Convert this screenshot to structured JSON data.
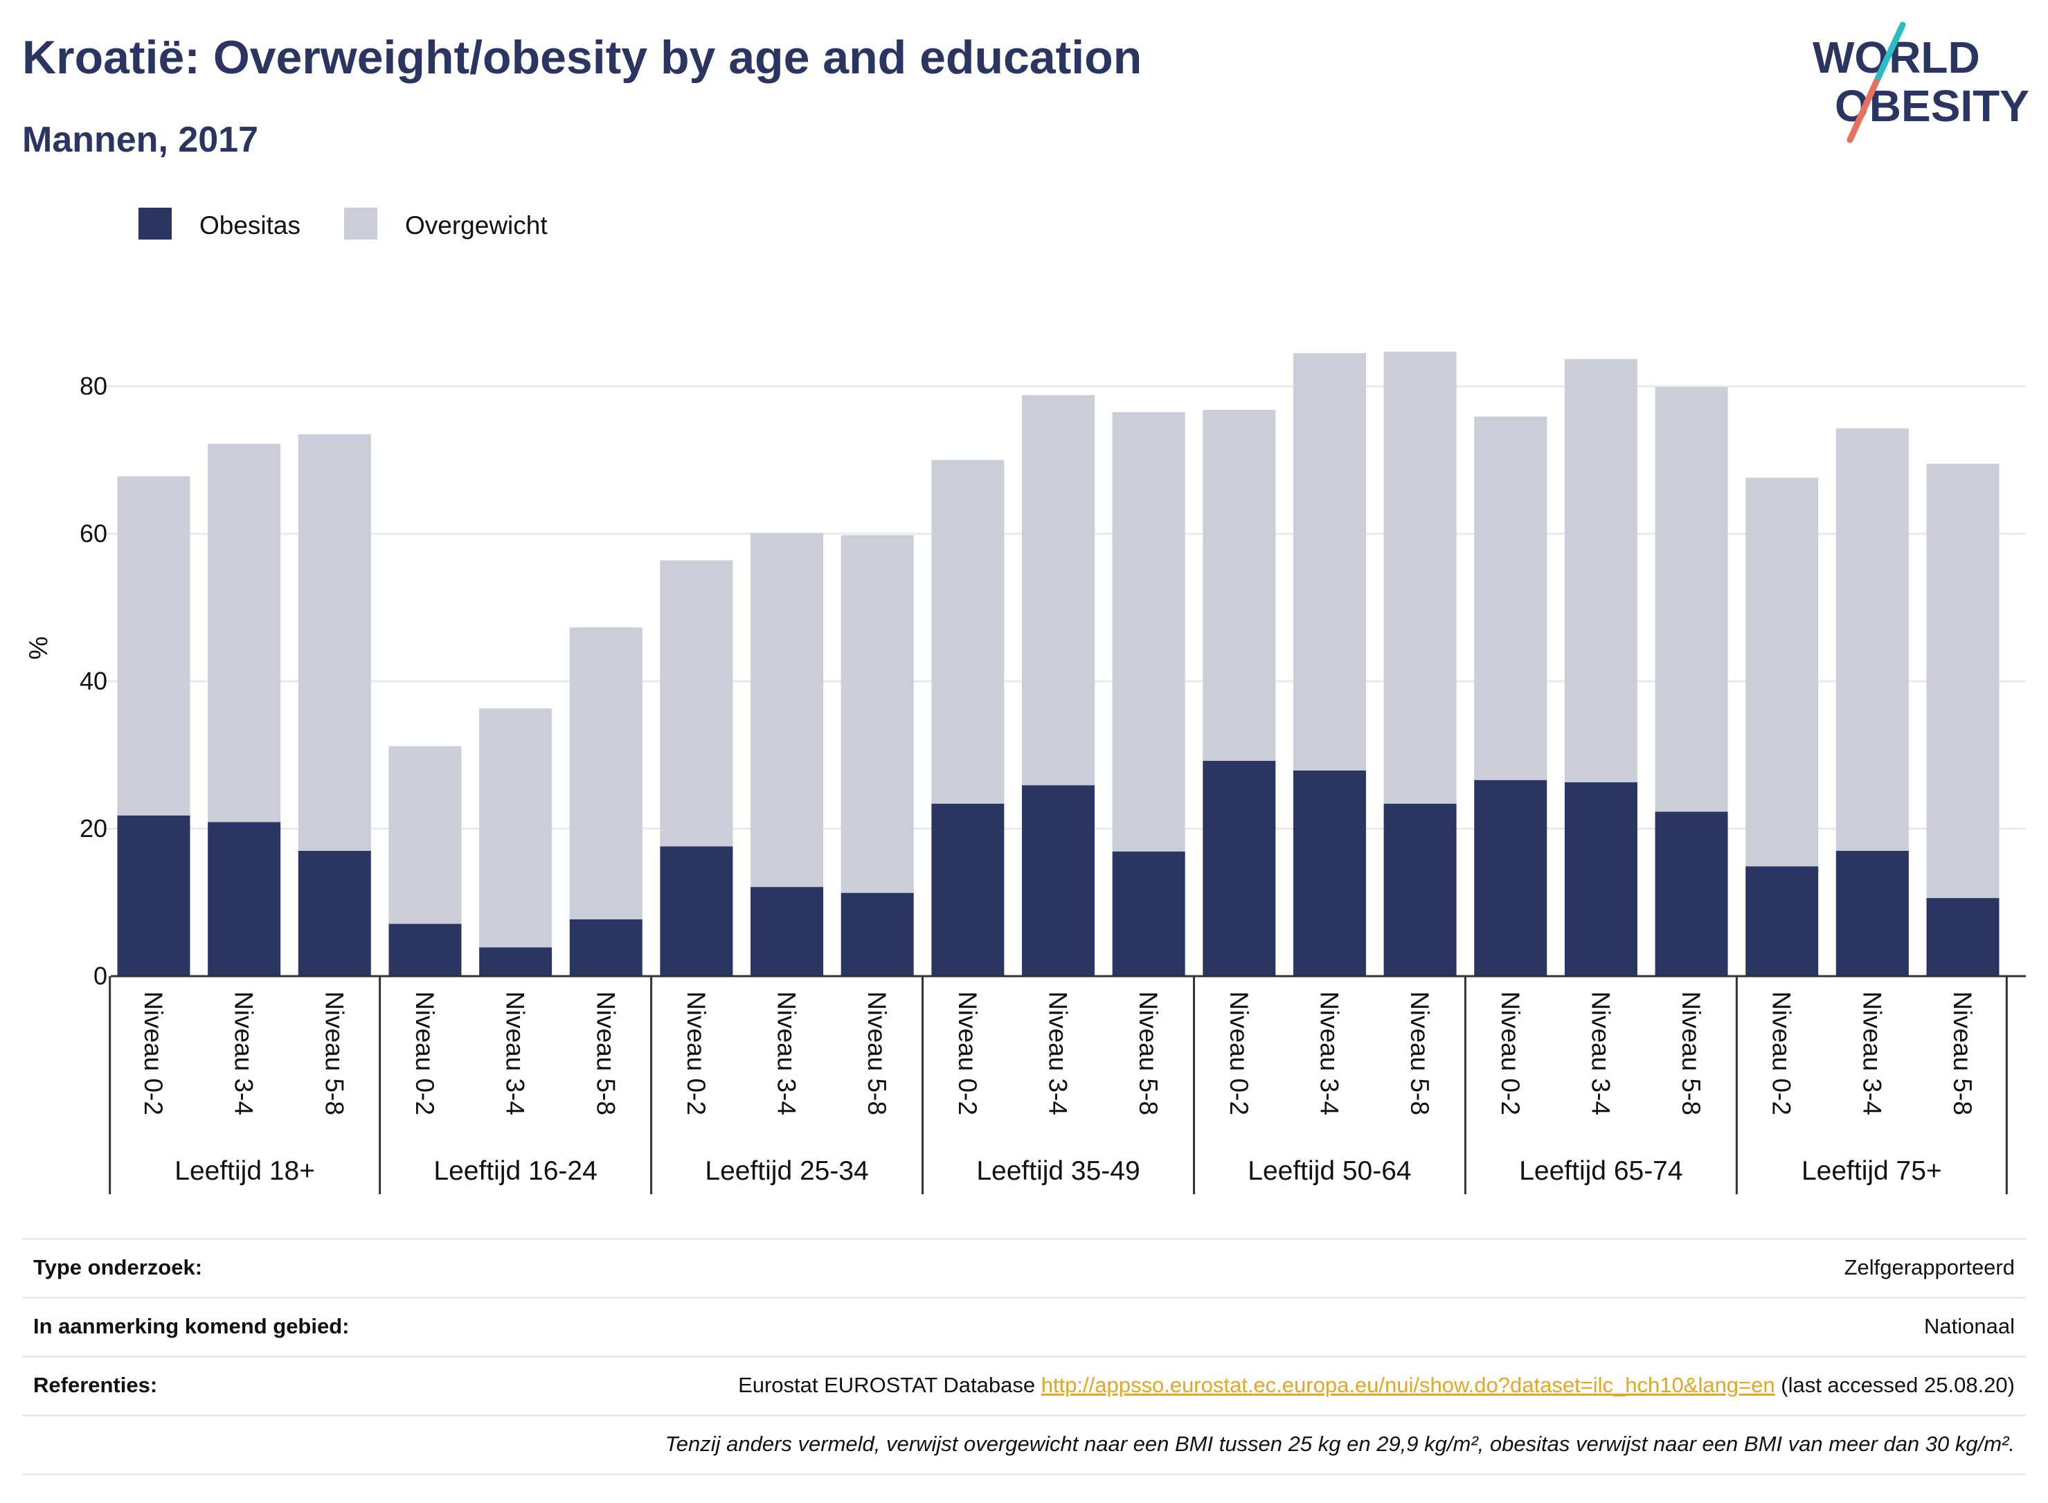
{
  "header": {
    "title": "Kroatië: Overweight/obesity by age and education",
    "subtitle": "Mannen, 2017"
  },
  "logo": {
    "line1": "WORLD",
    "line2": "OBESITY",
    "colors": {
      "text": "#2a3561",
      "slash_top": "#2bbcc4",
      "slash_bottom": "#e8705f"
    }
  },
  "chart_data": {
    "type": "bar",
    "stacked": true,
    "ylabel": "%",
    "ylim": [
      0,
      90
    ],
    "yticks": [
      0,
      20,
      40,
      60,
      80
    ],
    "grid": true,
    "legend": {
      "placement": "top-left",
      "entries": [
        "Obesitas",
        "Overgewicht"
      ]
    },
    "groups": [
      {
        "label": "Leeftijd 18+",
        "categories": [
          "Niveau 0-2",
          "Niveau 3-4",
          "Niveau 5-8"
        ]
      },
      {
        "label": "Leeftijd 16-24",
        "categories": [
          "Niveau 0-2",
          "Niveau 3-4",
          "Niveau 5-8"
        ]
      },
      {
        "label": "Leeftijd 25-34",
        "categories": [
          "Niveau 0-2",
          "Niveau 3-4",
          "Niveau 5-8"
        ]
      },
      {
        "label": "Leeftijd 35-49",
        "categories": [
          "Niveau 0-2",
          "Niveau 3-4",
          "Niveau 5-8"
        ]
      },
      {
        "label": "Leeftijd 50-64",
        "categories": [
          "Niveau 0-2",
          "Niveau 3-4",
          "Niveau 5-8"
        ]
      },
      {
        "label": "Leeftijd 65-74",
        "categories": [
          "Niveau 0-2",
          "Niveau 3-4",
          "Niveau 5-8"
        ]
      },
      {
        "label": "Leeftijd 75+",
        "categories": [
          "Niveau 0-2",
          "Niveau 3-4",
          "Niveau 5-8"
        ]
      }
    ],
    "series": [
      {
        "name": "Obesitas",
        "color": "#2a3561",
        "values": [
          21.8,
          20.9,
          17.0,
          7.1,
          3.9,
          7.7,
          17.6,
          12.1,
          11.3,
          23.4,
          25.9,
          16.9,
          29.2,
          27.9,
          23.4,
          26.6,
          26.3,
          22.3,
          14.9,
          17.0,
          10.6
        ]
      },
      {
        "name": "Overgewicht",
        "color": "#cbcdd9",
        "values": [
          46.0,
          51.3,
          56.5,
          24.1,
          32.4,
          39.6,
          38.8,
          48.0,
          48.5,
          46.6,
          52.9,
          59.6,
          47.6,
          56.6,
          61.3,
          49.3,
          57.4,
          57.6,
          52.7,
          57.3,
          58.9
        ]
      }
    ]
  },
  "info": {
    "rows": [
      {
        "label": "Type onderzoek:",
        "value": "Zelfgerapporteerd"
      },
      {
        "label": "In aanmerking komend gebied:",
        "value": "Nationaal"
      },
      {
        "label": "Referenties:",
        "value_prefix": "Eurostat EUROSTAT Database ",
        "link": "http://appsso.eurostat.ec.europa.eu/nui/show.do?dataset=ilc_hch10&lang=en",
        "value_suffix": " (last accessed 25.08.20)"
      }
    ],
    "note": "Tenzij anders vermeld, verwijst overgewicht naar een BMI tussen 25 kg en 29,9 kg/m², obesitas verwijst naar een BMI van meer dan 30 kg/m²."
  }
}
